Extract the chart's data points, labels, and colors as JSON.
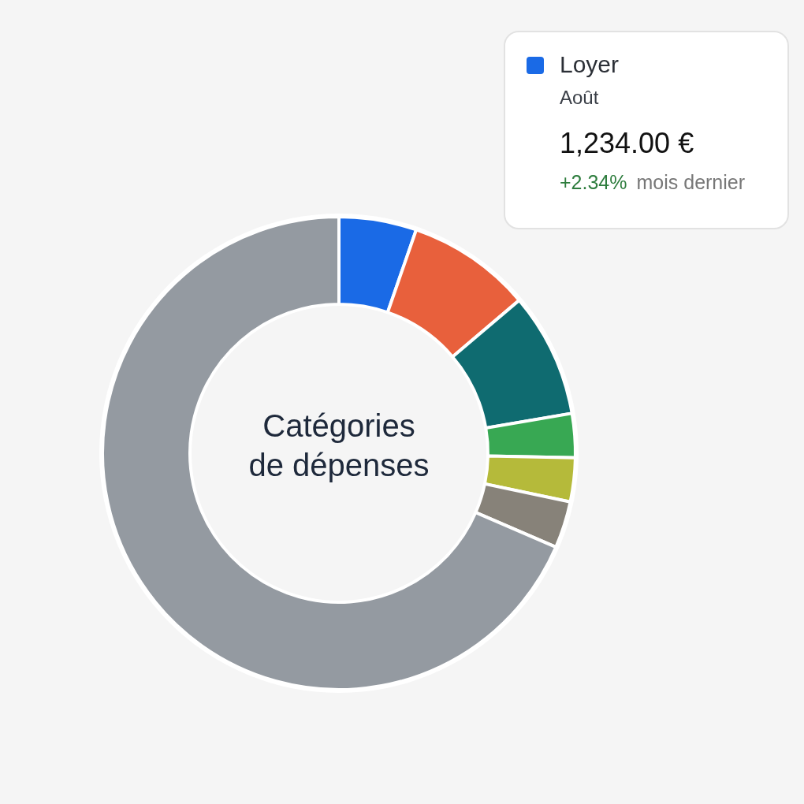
{
  "chart_data": {
    "type": "donut",
    "title": "Catégories de dépenses",
    "categories": [
      "Loyer",
      null,
      null,
      null,
      null,
      null,
      null
    ],
    "values": [
      5.3,
      8.5,
      8.5,
      3.0,
      3.0,
      3.2,
      68.5
    ],
    "colors": [
      "#1a6ae6",
      "#e8603c",
      "#0f6b70",
      "#38a853",
      "#b5ba3a",
      "#878279",
      "#949aa1"
    ],
    "legend": "top right",
    "annotations": [
      "Août",
      "1,234.00 €",
      "+2.34%",
      "mois dernier"
    ]
  }
}
